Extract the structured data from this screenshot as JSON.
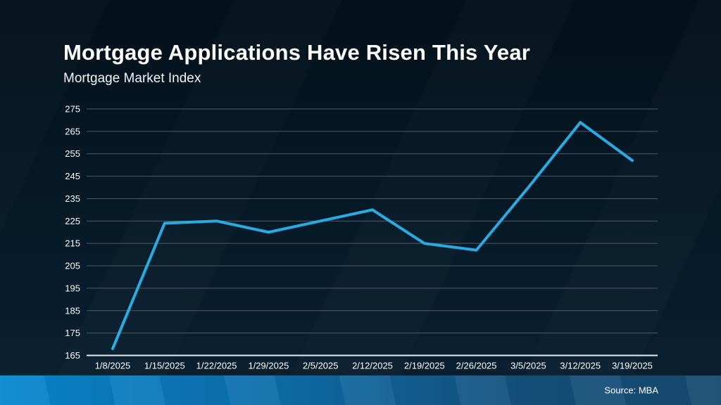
{
  "page": {
    "title": "Mortgage Applications Have Risen This Year",
    "subtitle": "Mortgage Market Index",
    "source": "Source: MBA"
  },
  "colors": {
    "line": "#29abe2",
    "grid": "#4f5b63",
    "axis": "#e6edf2",
    "tick_text": "#ffffff",
    "bar_left": "#0887cf",
    "bar_right": "#164a70"
  },
  "chart_data": {
    "type": "line",
    "title": "Mortgage Applications Have Risen This Year",
    "subtitle": "Mortgage Market Index",
    "source": "Source: MBA",
    "categories": [
      "1/8/2025",
      "1/15/2025",
      "1/22/2025",
      "1/29/2025",
      "2/5/2025",
      "2/12/2025",
      "2/19/2025",
      "2/26/2025",
      "3/5/2025",
      "3/12/2025",
      "3/19/2025"
    ],
    "series": [
      {
        "name": "Mortgage Market Index",
        "values": [
          168,
          224,
          225,
          220,
          225,
          230,
          215,
          212,
          240,
          269,
          252
        ]
      }
    ],
    "ylim": [
      165,
      275
    ],
    "y_ticks": [
      165,
      175,
      185,
      195,
      205,
      215,
      225,
      235,
      245,
      255,
      265,
      275
    ],
    "grid": "horizontal",
    "legend": "none"
  }
}
